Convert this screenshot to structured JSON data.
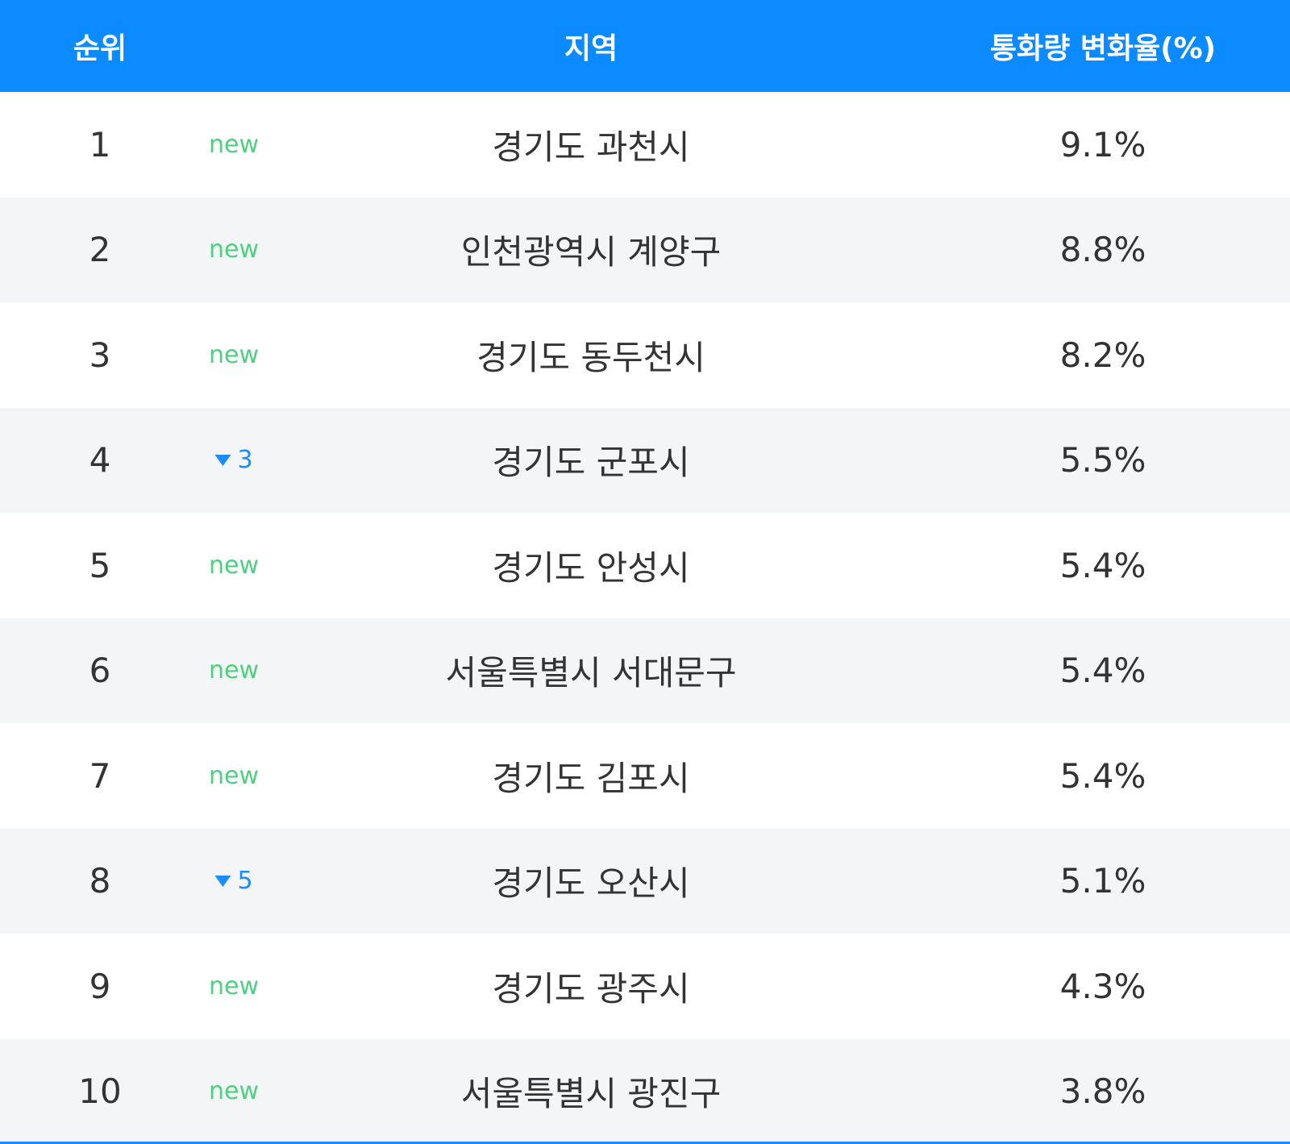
{
  "table": {
    "headers": [
      "순위",
      "지역",
      "통화량 변화율(%)"
    ],
    "rows": [
      {
        "rank": 1,
        "status": "new",
        "region": "경기도 과천시",
        "rate": "9.1%"
      },
      {
        "rank": 2,
        "status": "new",
        "region": "인천광역시 계양구",
        "rate": "8.8%"
      },
      {
        "rank": 3,
        "status": "new",
        "region": "경기도 동두천시",
        "rate": "8.2%"
      },
      {
        "rank": 4,
        "rank_change": 3,
        "region": "경기도 군포시",
        "rate": "5.5%"
      },
      {
        "rank": 5,
        "status": "new",
        "region": "경기도 안성시",
        "rate": "5.4%"
      },
      {
        "rank": 6,
        "status": "new",
        "region": "서울특별시 서대문구",
        "rate": "5.4%"
      },
      {
        "rank": 7,
        "status": "new",
        "region": "경기도 김포시",
        "rate": "5.4%"
      },
      {
        "rank": 8,
        "rank_change": 5,
        "region": "경기도 오산시",
        "rate": "5.1%"
      },
      {
        "rank": 9,
        "status": "new",
        "region": "경기도 광주시",
        "rate": "4.3%"
      },
      {
        "rank": 10,
        "status": "new",
        "region": "서울특별시 광진구",
        "rate": "3.8%"
      }
    ]
  }
}
